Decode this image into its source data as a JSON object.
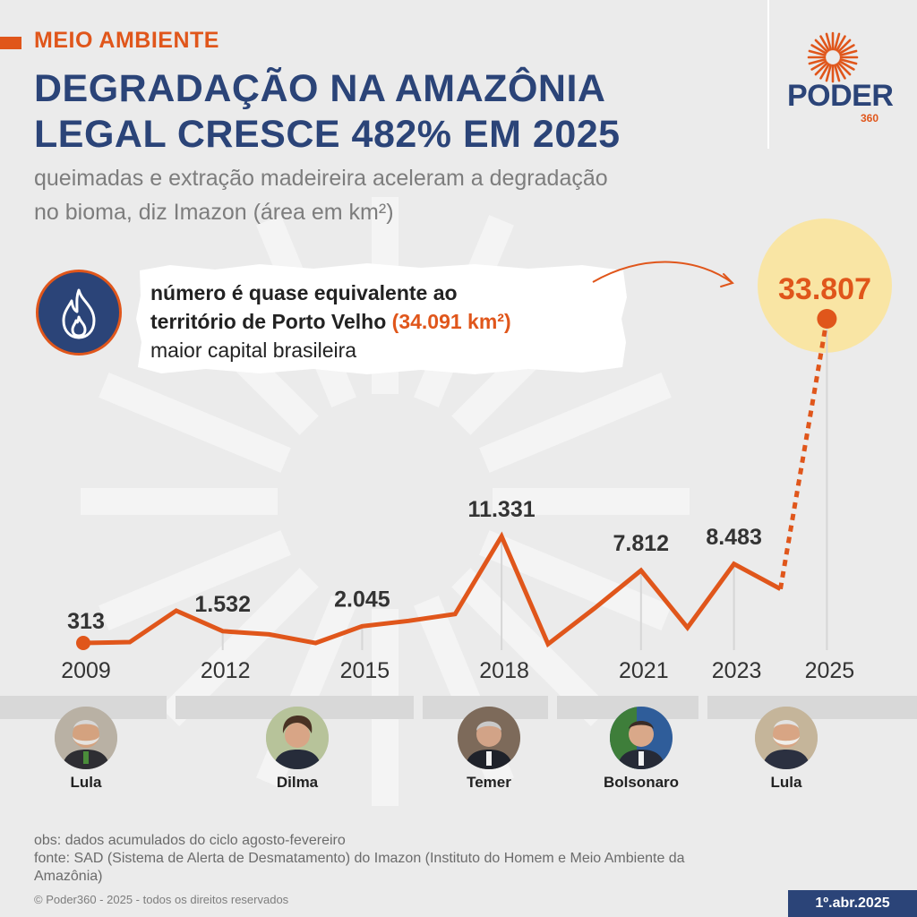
{
  "header": {
    "section": "MEIO AMBIENTE",
    "headline_line1": "DEGRADAÇÃO NA AMAZÔNIA",
    "headline_line2": "LEGAL CRESCE 482% EM 2025",
    "subtitle_line1": "queimadas e extração madeireira aceleram a degradação",
    "subtitle_line2": "no bioma, diz Imazon (área em km²)"
  },
  "logo": {
    "word": "PODER",
    "number": "360"
  },
  "callout": {
    "line1": "número é quase equivalente ao",
    "line2_prefix": "território de Porto Velho ",
    "line2_highlight": "(34.091 km²)",
    "line3": "maior capital brasileira",
    "icon": "flame-icon"
  },
  "chart_data": {
    "type": "line",
    "x": [
      2009,
      2010,
      2011,
      2012,
      2013,
      2014,
      2015,
      2016,
      2017,
      2018,
      2019,
      2020,
      2021,
      2022,
      2023,
      2024,
      2025
    ],
    "values": [
      313,
      400,
      3650,
      1532,
      1200,
      310,
      2045,
      2600,
      3300,
      11331,
      200,
      3900,
      7812,
      1900,
      8483,
      5900,
      33807
    ],
    "labeled_values": [
      {
        "x": 2009,
        "label": "313"
      },
      {
        "x": 2012,
        "label": "1.532"
      },
      {
        "x": 2015,
        "label": "2.045"
      },
      {
        "x": 2018,
        "label": "11.331"
      },
      {
        "x": 2021,
        "label": "7.812"
      },
      {
        "x": 2023,
        "label": "8.483"
      },
      {
        "x": 2025,
        "label": "33.807"
      }
    ],
    "x_tick_labels": [
      "2009",
      "2012",
      "2015",
      "2018",
      "2021",
      "2023",
      "2025"
    ],
    "last_segment_dotted": true,
    "unit": "km²",
    "color": "#e0561b"
  },
  "presidents": [
    {
      "name": "Lula",
      "icon": "lula-portrait"
    },
    {
      "name": "Dilma",
      "icon": "dilma-portrait"
    },
    {
      "name": "Temer",
      "icon": "temer-portrait"
    },
    {
      "name": "Bolsonaro",
      "icon": "bolsonaro-portrait"
    },
    {
      "name": "Lula",
      "icon": "lula-portrait"
    }
  ],
  "footer": {
    "obs": "obs: dados acumulados do ciclo agosto-fevereiro",
    "source_line1": "fonte: SAD (Sistema de Alerta de Desmatamento) do Imazon (Instituto do Homem e Meio Ambiente da",
    "source_line2": "Amazônia)",
    "copyright": "© Poder360 - 2025 - todos os direitos reservados",
    "date": "1º.abr.2025"
  },
  "colors": {
    "accent": "#e0561b",
    "navy": "#2b4478",
    "highlight": "#f9e5a4",
    "background": "#ebebeb"
  }
}
